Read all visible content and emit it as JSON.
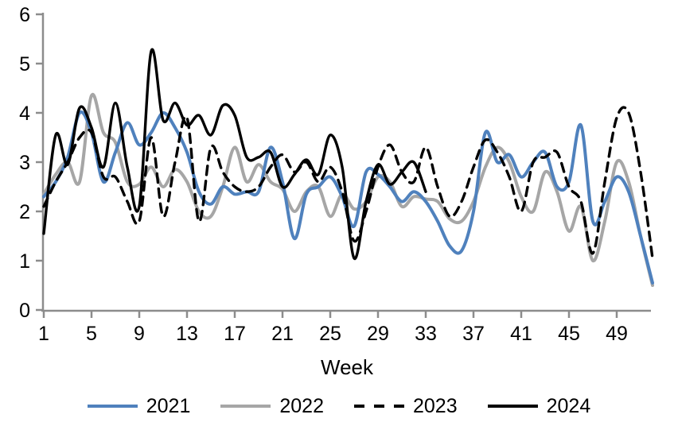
{
  "chart_data": {
    "type": "line",
    "xlabel": "Week",
    "ylabel": "",
    "xlim": [
      1,
      52
    ],
    "ylim": [
      0,
      6
    ],
    "grid": false,
    "legend_position": "bottom",
    "axis_color": "#8c8c8c",
    "text_color": "#000000",
    "x_ticks": [
      1,
      5,
      9,
      13,
      17,
      21,
      25,
      29,
      33,
      37,
      41,
      45,
      49
    ],
    "y_ticks": [
      0,
      1,
      2,
      3,
      4,
      5,
      6
    ],
    "weeks": [
      1,
      2,
      3,
      4,
      5,
      6,
      7,
      8,
      9,
      10,
      11,
      12,
      13,
      14,
      15,
      16,
      17,
      18,
      19,
      20,
      21,
      22,
      23,
      24,
      25,
      26,
      27,
      28,
      29,
      30,
      31,
      32,
      33,
      34,
      35,
      36,
      37,
      38,
      39,
      40,
      41,
      42,
      43,
      44,
      45,
      46,
      47,
      48,
      49,
      50,
      51,
      52
    ],
    "series": [
      {
        "name": "2021",
        "color": "#4f81bd",
        "style": "solid",
        "start_week": 1,
        "values": [
          2.3,
          2.6,
          3.1,
          4.0,
          3.6,
          2.6,
          3.2,
          3.8,
          3.35,
          3.6,
          4.0,
          3.7,
          3.2,
          2.4,
          2.15,
          2.5,
          2.35,
          2.4,
          2.4,
          3.3,
          2.6,
          1.45,
          2.35,
          2.5,
          2.7,
          2.3,
          1.7,
          2.8,
          2.75,
          2.5,
          2.2,
          2.4,
          2.2,
          1.8,
          1.3,
          1.2,
          2.0,
          3.6,
          3.0,
          3.15,
          2.7,
          3.0,
          3.2,
          2.5,
          2.6,
          3.75,
          1.8,
          2.2,
          2.7,
          2.4,
          1.5,
          0.55
        ]
      },
      {
        "name": "2022",
        "color": "#a6a6a6",
        "style": "solid",
        "start_week": 1,
        "values": [
          2.35,
          2.75,
          3.0,
          2.6,
          4.35,
          3.6,
          3.4,
          2.6,
          2.55,
          2.9,
          2.5,
          2.85,
          2.6,
          2.0,
          1.9,
          2.5,
          3.3,
          2.6,
          2.95,
          2.6,
          2.45,
          2.0,
          2.4,
          2.5,
          1.9,
          2.35,
          2.05,
          2.2,
          2.7,
          2.6,
          2.1,
          2.3,
          2.25,
          2.2,
          1.85,
          1.8,
          2.2,
          2.9,
          3.3,
          3.0,
          2.3,
          2.0,
          2.8,
          2.4,
          1.6,
          2.1,
          1.0,
          1.8,
          3.0,
          2.6,
          1.5,
          0.5
        ]
      },
      {
        "name": "2023",
        "color": "#000000",
        "style": "dashed",
        "start_week": 1,
        "values": [
          2.1,
          2.6,
          3.0,
          3.5,
          3.6,
          2.7,
          2.7,
          2.2,
          1.8,
          3.5,
          1.9,
          3.0,
          3.9,
          1.8,
          3.3,
          2.8,
          2.5,
          2.4,
          2.5,
          2.9,
          3.15,
          2.8,
          3.0,
          2.6,
          2.9,
          2.4,
          1.4,
          2.0,
          2.9,
          3.35,
          2.8,
          2.6,
          3.3,
          2.5,
          1.9,
          2.2,
          2.9,
          3.45,
          3.2,
          2.7,
          2.0,
          3.0,
          3.1,
          3.2,
          2.5,
          2.2,
          1.15,
          2.6,
          3.9,
          4.0,
          2.8,
          1.05
        ]
      },
      {
        "name": "2024",
        "color": "#000000",
        "style": "solid",
        "start_week": 1,
        "values": [
          1.55,
          3.55,
          2.95,
          4.1,
          3.7,
          2.9,
          4.2,
          2.9,
          2.1,
          5.25,
          3.85,
          4.2,
          3.75,
          3.95,
          3.55,
          4.15,
          3.95,
          3.1,
          3.1,
          3.2,
          2.5,
          2.75,
          3.05,
          2.75,
          3.55,
          2.9,
          1.05,
          2.2,
          2.95,
          2.55,
          2.8,
          3.0,
          2.4
        ]
      }
    ]
  }
}
